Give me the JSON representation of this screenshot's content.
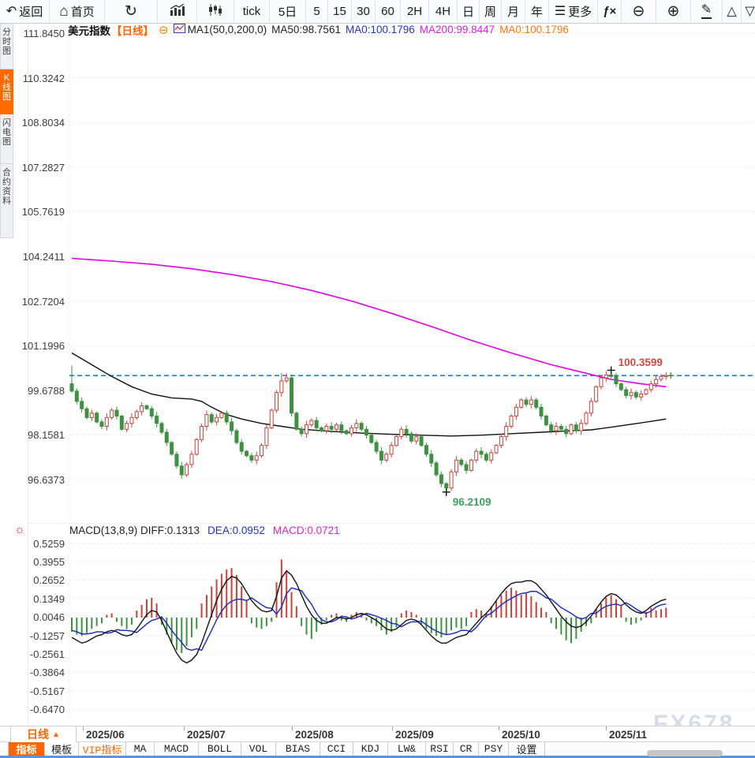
{
  "topbar": {
    "items": [
      {
        "name": "back-button",
        "icon": "back-icon",
        "label": "返回"
      },
      {
        "name": "home-button",
        "icon": "home-icon",
        "label": "首页"
      },
      {
        "name": "refresh-button",
        "icon": "refresh-icon",
        "label": ""
      },
      {
        "name": "column-chart-button",
        "icon": "column-chart-icon",
        "label": ""
      },
      {
        "name": "candlestick-button",
        "icon": "candlestick-icon",
        "label": ""
      },
      {
        "name": "interval-tick-button",
        "icon": "",
        "label": "tick"
      },
      {
        "name": "interval-5d-button",
        "icon": "",
        "label": "5日"
      },
      {
        "name": "interval-5-button",
        "icon": "",
        "label": "5"
      },
      {
        "name": "interval-15-button",
        "icon": "",
        "label": "15"
      },
      {
        "name": "interval-30-button",
        "icon": "",
        "label": "30"
      },
      {
        "name": "interval-60-button",
        "icon": "",
        "label": "60"
      },
      {
        "name": "interval-2h-button",
        "icon": "",
        "label": "2H"
      },
      {
        "name": "interval-4h-button",
        "icon": "",
        "label": "4H"
      },
      {
        "name": "interval-day-button",
        "icon": "",
        "label": "日"
      },
      {
        "name": "interval-week-button",
        "icon": "",
        "label": "周"
      },
      {
        "name": "interval-month-button",
        "icon": "",
        "label": "月"
      },
      {
        "name": "interval-year-button",
        "icon": "",
        "label": "年"
      },
      {
        "name": "more-button",
        "icon": "menu-icon",
        "label": "更多"
      },
      {
        "name": "indicator-fx-button",
        "icon": "fx-icon",
        "label": ""
      },
      {
        "name": "zoom-out-button",
        "icon": "zoom-out-icon",
        "label": ""
      },
      {
        "name": "zoom-in-button",
        "icon": "zoom-in-icon",
        "label": ""
      },
      {
        "name": "draw-tool-button",
        "icon": "pencil-icon",
        "label": ""
      },
      {
        "name": "triangle-up-button",
        "icon": "triangle-up-icon",
        "label": ""
      },
      {
        "name": "triangle-down-button",
        "icon": "triangle-down-icon",
        "label": ""
      }
    ]
  },
  "sidebar": {
    "items": [
      {
        "label": "分时图",
        "active": false
      },
      {
        "label": "K线图",
        "active": true
      },
      {
        "label": "闪电图",
        "active": false
      },
      {
        "label": "合约资料",
        "active": false
      }
    ]
  },
  "chart_header": {
    "symbol": "美元指数",
    "period": "【日线】",
    "ma_group": "MA1(50,0,200,0)",
    "ma50": "MA50:98.7561",
    "ma0_blue": "MA0:100.1796",
    "ma200": "MA200:99.8447",
    "ma0_orange": "MA0:100.1796"
  },
  "macd_header": {
    "left": "MACD(13,8,9) DIFF:0.1313",
    "dea": "DEA:0.0952",
    "macd": "MACD:0.0721"
  },
  "x_axis": {
    "period_label": "日线",
    "arrow": "▲"
  },
  "bottom_bar": {
    "items": [
      {
        "label": "指标",
        "style": "active"
      },
      {
        "label": "模板",
        "style": "normal"
      },
      {
        "label": "VIP指标",
        "style": "vip"
      },
      {
        "label": "MA",
        "style": "normal"
      },
      {
        "label": "MACD",
        "style": "normal"
      },
      {
        "label": "BOLL",
        "style": "normal"
      },
      {
        "label": "VOL",
        "style": "normal"
      },
      {
        "label": "BIAS",
        "style": "normal"
      },
      {
        "label": "CCI",
        "style": "normal"
      },
      {
        "label": "KDJ",
        "style": "normal"
      },
      {
        "label": "LW&",
        "style": "normal"
      },
      {
        "label": "RSI",
        "style": "normal"
      },
      {
        "label": "CR",
        "style": "normal"
      },
      {
        "label": "PSY",
        "style": "normal"
      },
      {
        "label": "设置",
        "style": "normal"
      }
    ]
  },
  "watermark": "FX678",
  "annotations": {
    "high_label": "100.3599",
    "low_label": "96.2109"
  },
  "colors": {
    "accent_orange": "#ff6600",
    "up_red": "#c4443c",
    "down_green": "#3f9142",
    "ma50_black": "#111111",
    "ma200_magenta": "#e000e0",
    "dea_blue": "#2233bb",
    "price_line_blue": "#1e7ee0",
    "high_label_red": "#cf4a3f",
    "low_label_green": "#3aa05f",
    "grid_dot": "#ecdcdc"
  },
  "chart_data": {
    "type": "candlestick",
    "title": "美元指数【日线】",
    "x_axis_months": [
      "2025/06",
      "2025/07",
      "2025/08",
      "2025/09",
      "2025/10",
      "2025/11"
    ],
    "price_ticks": [
      "111.8450",
      "110.3242",
      "108.8034",
      "107.2827",
      "105.7619",
      "104.2411",
      "102.7204",
      "101.1996",
      "99.6788",
      "98.1581",
      "96.6373"
    ],
    "macd_ticks": [
      "0.5259",
      "0.3955",
      "0.2652",
      "0.1349",
      "0.0046",
      "-0.1257",
      "-0.2561",
      "-0.3864",
      "-0.5167",
      "-0.6470"
    ],
    "current_price_line": 100.1796,
    "high_point": {
      "index": 108,
      "value": 100.3599
    },
    "low_point": {
      "index": 75,
      "value": 96.2109
    },
    "first_open": 99.9,
    "closes": [
      99.65,
      99.3,
      99.05,
      98.75,
      98.9,
      98.6,
      98.45,
      98.75,
      99.0,
      98.8,
      98.35,
      98.55,
      98.75,
      98.95,
      99.15,
      99.05,
      98.8,
      98.55,
      98.25,
      97.9,
      97.5,
      97.1,
      96.8,
      97.15,
      97.5,
      98.0,
      98.45,
      98.85,
      98.6,
      98.75,
      98.9,
      98.6,
      98.3,
      97.9,
      97.6,
      97.45,
      97.3,
      97.45,
      97.8,
      98.4,
      99.0,
      99.6,
      100.0,
      100.1,
      98.9,
      98.35,
      98.2,
      98.5,
      98.65,
      98.4,
      98.3,
      98.45,
      98.35,
      98.5,
      98.3,
      98.2,
      98.4,
      98.55,
      98.35,
      98.15,
      97.9,
      97.6,
      97.3,
      97.5,
      97.8,
      98.1,
      98.35,
      98.2,
      97.95,
      98.1,
      97.8,
      97.5,
      97.2,
      96.8,
      96.5,
      96.35,
      96.9,
      97.3,
      97.15,
      96.95,
      97.3,
      97.6,
      97.5,
      97.3,
      97.55,
      97.8,
      98.1,
      98.45,
      98.8,
      99.1,
      99.35,
      99.2,
      99.35,
      99.1,
      98.8,
      98.5,
      98.3,
      98.45,
      98.35,
      98.2,
      98.5,
      98.3,
      98.55,
      98.9,
      99.3,
      99.8,
      100.1,
      100.2,
      100.15,
      99.9,
      99.7,
      99.5,
      99.6,
      99.45,
      99.55,
      99.7,
      99.9,
      100.05,
      100.15,
      100.18
    ],
    "wick_overrides": [
      {
        "index": 0,
        "high": 100.52
      },
      {
        "index": 42,
        "high": 100.26
      },
      {
        "index": 43,
        "high": 100.25
      },
      {
        "index": 75,
        "low": 96.2109
      },
      {
        "index": 108,
        "high": 100.3599
      }
    ],
    "ma50_points": [
      [
        0,
        100.95
      ],
      [
        4,
        100.55
      ],
      [
        8,
        100.15
      ],
      [
        12,
        99.8
      ],
      [
        16,
        99.55
      ],
      [
        20,
        99.42
      ],
      [
        24,
        99.38
      ],
      [
        26,
        99.3
      ],
      [
        28,
        99.1
      ],
      [
        31,
        98.85
      ],
      [
        34,
        98.7
      ],
      [
        38,
        98.55
      ],
      [
        42,
        98.45
      ],
      [
        46,
        98.35
      ],
      [
        52,
        98.28
      ],
      [
        58,
        98.22
      ],
      [
        64,
        98.18
      ],
      [
        70,
        98.15
      ],
      [
        76,
        98.12
      ],
      [
        82,
        98.15
      ],
      [
        88,
        98.2
      ],
      [
        94,
        98.25
      ],
      [
        100,
        98.3
      ],
      [
        104,
        98.33
      ],
      [
        108,
        98.42
      ],
      [
        112,
        98.52
      ],
      [
        116,
        98.62
      ],
      [
        119,
        98.7
      ]
    ],
    "ma200_points": [
      [
        0,
        104.17
      ],
      [
        8,
        104.08
      ],
      [
        16,
        103.97
      ],
      [
        24,
        103.82
      ],
      [
        32,
        103.62
      ],
      [
        40,
        103.38
      ],
      [
        48,
        103.08
      ],
      [
        56,
        102.72
      ],
      [
        64,
        102.3
      ],
      [
        72,
        101.85
      ],
      [
        80,
        101.38
      ],
      [
        88,
        100.95
      ],
      [
        96,
        100.55
      ],
      [
        102,
        100.3
      ],
      [
        108,
        100.05
      ],
      [
        114,
        99.9
      ],
      [
        119,
        99.8
      ]
    ],
    "macd": {
      "hist": [
        -0.1,
        -0.12,
        -0.13,
        -0.11,
        -0.08,
        -0.06,
        -0.04,
        0.02,
        0.03,
        -0.03,
        -0.06,
        -0.08,
        -0.05,
        0.05,
        0.09,
        0.13,
        0.14,
        0.1,
        -0.05,
        -0.12,
        -0.18,
        -0.23,
        -0.25,
        -0.2,
        -0.14,
        -0.08,
        0.1,
        0.16,
        0.22,
        0.27,
        0.31,
        0.34,
        0.35,
        0.3,
        0.22,
        0.12,
        -0.04,
        -0.07,
        -0.08,
        -0.06,
        -0.03,
        0.25,
        0.41,
        0.32,
        0.18,
        0.08,
        -0.06,
        -0.12,
        -0.15,
        -0.1,
        -0.05,
        -0.02,
        0.02,
        0.03,
        -0.02,
        -0.03,
        0.02,
        0.04,
        0.03,
        -0.02,
        -0.04,
        -0.06,
        -0.09,
        -0.12,
        -0.1,
        -0.07,
        0.03,
        0.05,
        0.04,
        0.02,
        -0.05,
        -0.08,
        -0.11,
        -0.13,
        -0.14,
        -0.12,
        -0.09,
        -0.07,
        -0.08,
        -0.06,
        0.04,
        0.06,
        0.05,
        0.03,
        0.08,
        0.12,
        0.16,
        0.19,
        0.21,
        0.19,
        0.16,
        0.17,
        0.15,
        0.11,
        0.07,
        0.04,
        -0.04,
        -0.08,
        -0.12,
        -0.16,
        -0.18,
        -0.15,
        -0.1,
        -0.06,
        -0.04,
        0.06,
        0.1,
        0.14,
        0.16,
        0.13,
        0.09,
        -0.03,
        -0.05,
        -0.04,
        -0.02,
        0.04,
        0.07,
        0.05,
        0.06,
        0.07
      ],
      "diff": [
        -0.14,
        -0.16,
        -0.18,
        -0.17,
        -0.15,
        -0.13,
        -0.12,
        -0.1,
        -0.09,
        -0.1,
        -0.12,
        -0.13,
        -0.12,
        -0.08,
        -0.03,
        0.02,
        0.05,
        0.04,
        -0.02,
        -0.1,
        -0.18,
        -0.25,
        -0.3,
        -0.32,
        -0.3,
        -0.26,
        -0.18,
        -0.08,
        0.02,
        0.12,
        0.2,
        0.26,
        0.29,
        0.28,
        0.24,
        0.18,
        0.12,
        0.08,
        0.05,
        0.04,
        0.05,
        0.15,
        0.28,
        0.33,
        0.3,
        0.24,
        0.16,
        0.08,
        0.02,
        -0.02,
        -0.04,
        -0.04,
        -0.02,
        0.0,
        0.0,
        -0.01,
        0.0,
        0.02,
        0.03,
        0.02,
        0.0,
        -0.02,
        -0.05,
        -0.08,
        -0.09,
        -0.08,
        -0.05,
        -0.02,
        -0.01,
        -0.02,
        -0.05,
        -0.09,
        -0.13,
        -0.16,
        -0.18,
        -0.18,
        -0.16,
        -0.14,
        -0.13,
        -0.12,
        -0.08,
        -0.04,
        0.0,
        0.03,
        0.07,
        0.12,
        0.17,
        0.21,
        0.24,
        0.25,
        0.25,
        0.26,
        0.26,
        0.24,
        0.2,
        0.16,
        0.11,
        0.06,
        0.01,
        -0.03,
        -0.06,
        -0.07,
        -0.06,
        -0.03,
        0.01,
        0.06,
        0.11,
        0.15,
        0.17,
        0.16,
        0.13,
        0.09,
        0.06,
        0.04,
        0.03,
        0.05,
        0.08,
        0.1,
        0.12,
        0.13
      ]
    }
  }
}
